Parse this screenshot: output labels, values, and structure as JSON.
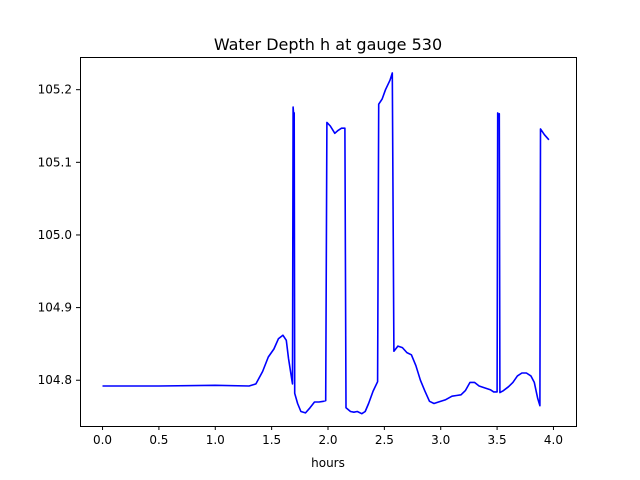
{
  "chart_data": {
    "type": "line",
    "title": "Water Depth h at gauge 530",
    "xlabel": "hours",
    "ylabel": "",
    "xlim": [
      -0.2,
      4.2
    ],
    "ylim": [
      104.737,
      105.245
    ],
    "x_ticks": [
      0.0,
      0.5,
      1.0,
      1.5,
      2.0,
      2.5,
      3.0,
      3.5,
      4.0
    ],
    "x_tick_labels": [
      "0.0",
      "0.5",
      "1.0",
      "1.5",
      "2.0",
      "2.5",
      "3.0",
      "3.5",
      "4.0"
    ],
    "y_ticks": [
      104.8,
      104.9,
      105.0,
      105.1,
      105.2
    ],
    "y_tick_labels": [
      "104.8",
      "104.9",
      "105.0",
      "105.1",
      "105.2"
    ],
    "grid": false,
    "series": [
      {
        "color": "#0000ff",
        "points": [
          [
            0.0,
            104.792
          ],
          [
            0.5,
            104.792
          ],
          [
            1.0,
            104.793
          ],
          [
            1.3,
            104.792
          ],
          [
            1.36,
            104.795
          ],
          [
            1.42,
            104.812
          ],
          [
            1.47,
            104.832
          ],
          [
            1.52,
            104.843
          ],
          [
            1.56,
            104.857
          ],
          [
            1.6,
            104.862
          ],
          [
            1.63,
            104.855
          ],
          [
            1.65,
            104.83
          ],
          [
            1.68,
            104.8
          ],
          [
            1.685,
            104.795
          ],
          [
            1.69,
            105.176
          ],
          [
            1.695,
            105.167
          ],
          [
            1.7,
            105.168
          ],
          [
            1.705,
            104.782
          ],
          [
            1.73,
            104.768
          ],
          [
            1.76,
            104.757
          ],
          [
            1.8,
            104.755
          ],
          [
            1.84,
            104.762
          ],
          [
            1.88,
            104.77
          ],
          [
            1.92,
            104.77
          ],
          [
            1.96,
            104.771
          ],
          [
            1.98,
            104.772
          ],
          [
            1.99,
            105.155
          ],
          [
            2.02,
            105.15
          ],
          [
            2.06,
            105.14
          ],
          [
            2.09,
            105.144
          ],
          [
            2.12,
            105.147
          ],
          [
            2.15,
            105.147
          ],
          [
            2.16,
            104.762
          ],
          [
            2.2,
            104.757
          ],
          [
            2.23,
            104.756
          ],
          [
            2.26,
            104.757
          ],
          [
            2.3,
            104.754
          ],
          [
            2.33,
            104.757
          ],
          [
            2.36,
            104.768
          ],
          [
            2.4,
            104.785
          ],
          [
            2.44,
            104.798
          ],
          [
            2.45,
            105.18
          ],
          [
            2.48,
            105.187
          ],
          [
            2.51,
            105.2
          ],
          [
            2.55,
            105.213
          ],
          [
            2.57,
            105.223
          ],
          [
            2.585,
            104.84
          ],
          [
            2.62,
            104.847
          ],
          [
            2.66,
            104.845
          ],
          [
            2.7,
            104.838
          ],
          [
            2.74,
            104.835
          ],
          [
            2.78,
            104.82
          ],
          [
            2.82,
            104.8
          ],
          [
            2.86,
            104.785
          ],
          [
            2.9,
            104.771
          ],
          [
            2.94,
            104.768
          ],
          [
            2.98,
            104.77
          ],
          [
            3.04,
            104.773
          ],
          [
            3.1,
            104.778
          ],
          [
            3.14,
            104.779
          ],
          [
            3.18,
            104.78
          ],
          [
            3.22,
            104.786
          ],
          [
            3.26,
            104.797
          ],
          [
            3.3,
            104.797
          ],
          [
            3.34,
            104.792
          ],
          [
            3.4,
            104.789
          ],
          [
            3.44,
            104.787
          ],
          [
            3.47,
            104.784
          ],
          [
            3.5,
            104.784
          ],
          [
            3.505,
            105.168
          ],
          [
            3.51,
            105.165
          ],
          [
            3.52,
            105.167
          ],
          [
            3.525,
            104.783
          ],
          [
            3.55,
            104.785
          ],
          [
            3.6,
            104.791
          ],
          [
            3.64,
            104.797
          ],
          [
            3.68,
            104.806
          ],
          [
            3.72,
            104.81
          ],
          [
            3.76,
            104.81
          ],
          [
            3.8,
            104.806
          ],
          [
            3.83,
            104.797
          ],
          [
            3.86,
            104.775
          ],
          [
            3.88,
            104.765
          ],
          [
            3.885,
            105.146
          ],
          [
            3.92,
            105.138
          ],
          [
            3.96,
            105.131
          ]
        ]
      }
    ]
  }
}
